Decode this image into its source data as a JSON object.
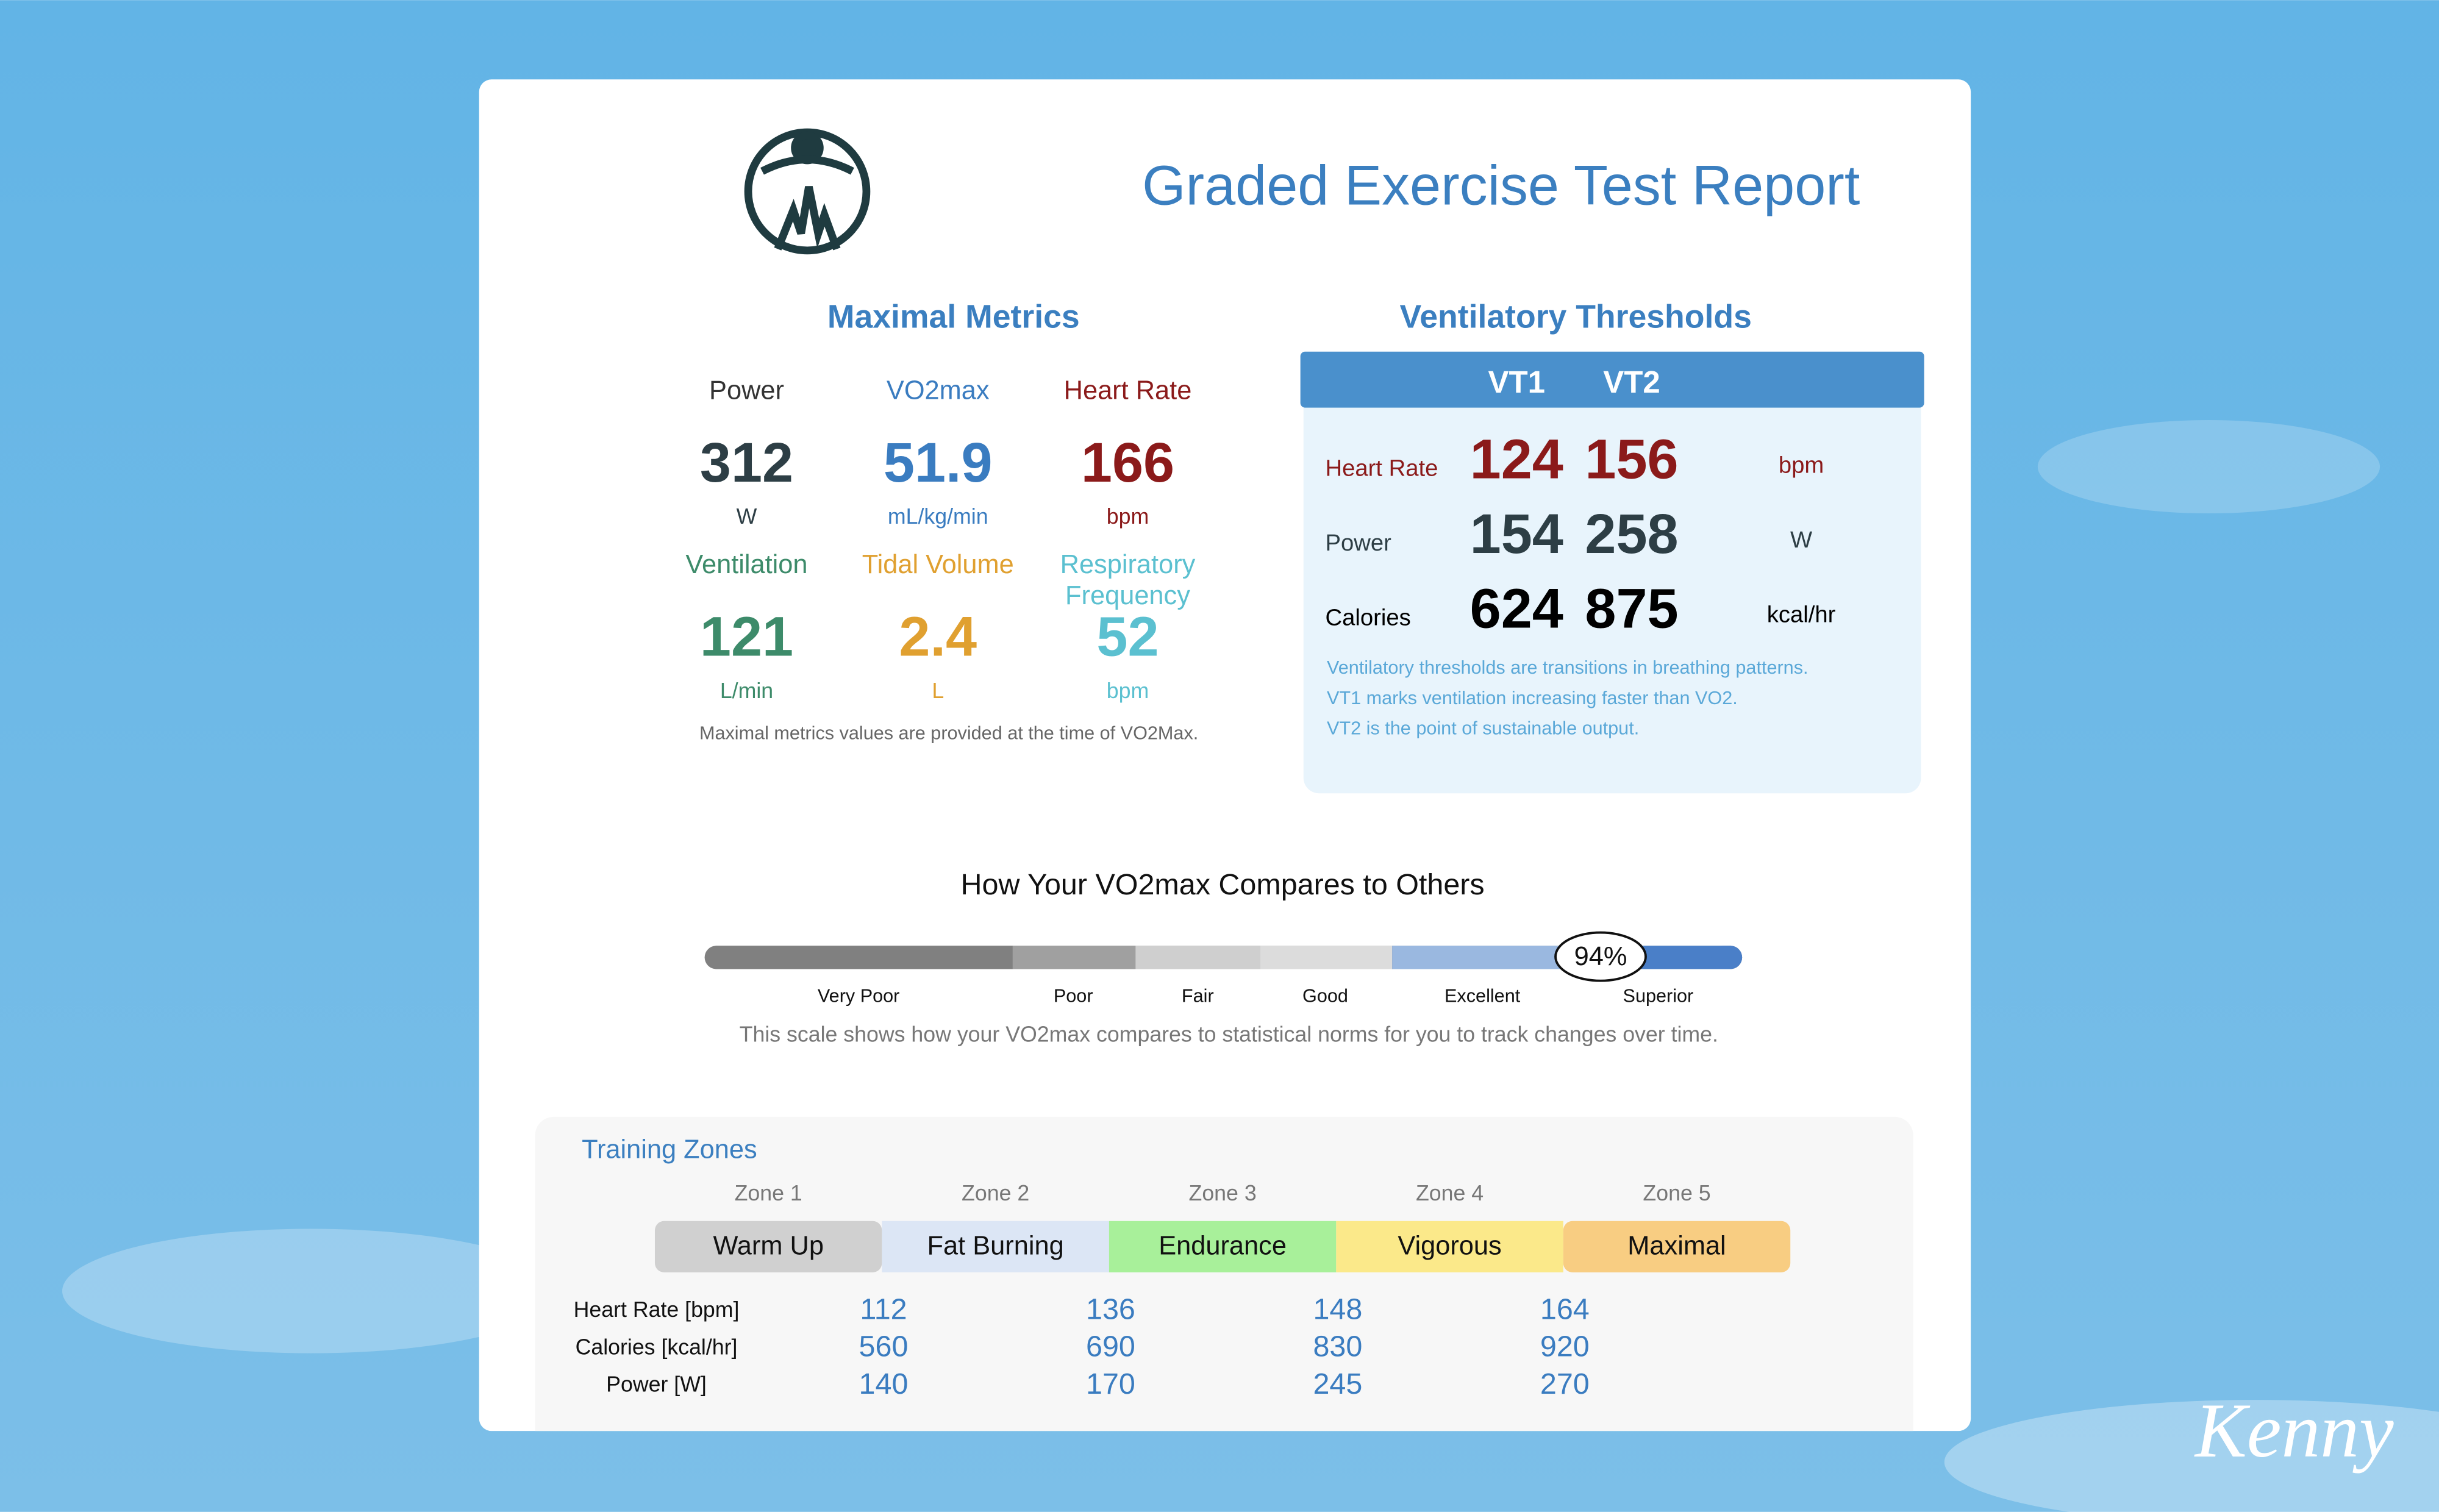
{
  "header": {
    "title": "Graded Exercise Test Report"
  },
  "maximal_metrics": {
    "title": "Maximal Metrics",
    "metrics": [
      {
        "label": "Power",
        "value": "312",
        "unit": "W",
        "color": "#2d3e45",
        "label_color": "#333333"
      },
      {
        "label": "VO2max",
        "value": "51.9",
        "unit": "mL/kg/min",
        "color": "#3a7cc0",
        "label_color": "#3a7cc0"
      },
      {
        "label": "Heart Rate",
        "value": "166",
        "unit": "bpm",
        "color": "#8b1a1a",
        "label_color": "#8b1a1a"
      },
      {
        "label": "Ventilation",
        "value": "121",
        "unit": "L/min",
        "color": "#3d8b6a",
        "label_color": "#3d8b6a"
      },
      {
        "label": "Tidal Volume",
        "value": "2.4",
        "unit": "L",
        "color": "#e0a030",
        "label_color": "#e0a030"
      },
      {
        "label": "Respiratory Frequency",
        "value": "52",
        "unit": "bpm",
        "color": "#5bc0d0",
        "label_color": "#5bc0d0"
      }
    ],
    "note": "Maximal metrics values are provided at the time of VO2Max."
  },
  "ventilatory_thresholds": {
    "title": "Ventilatory Thresholds",
    "columns": [
      "VT1",
      "VT2"
    ],
    "rows": [
      {
        "label": "Heart Rate",
        "values": [
          "124",
          "156"
        ],
        "unit": "bpm",
        "color": "#8b1a1a"
      },
      {
        "label": "Power",
        "values": [
          "154",
          "258"
        ],
        "unit": "W",
        "color": "#2d3e45"
      },
      {
        "label": "Calories",
        "values": [
          "624",
          "875"
        ],
        "unit": "kcal/hr",
        "color": "#000000"
      }
    ],
    "notes": [
      "Ventilatory thresholds are transitions in breathing patterns.",
      "VT1 marks ventilation increasing faster than VO2.",
      "VT2 is the point of sustainable output."
    ]
  },
  "comparison": {
    "title": "How Your VO2max Compares to Others",
    "categories": [
      "Very Poor",
      "Poor",
      "Fair",
      "Good",
      "Excellent",
      "Superior"
    ],
    "marker": "94%",
    "note": "This scale shows how your VO2max compares to statistical norms for you to track changes over time."
  },
  "training_zones": {
    "title": "Training Zones",
    "zones": [
      {
        "zone": "Zone 1",
        "name": "Warm Up",
        "color": "#d0d0d0"
      },
      {
        "zone": "Zone 2",
        "name": "Fat Burning",
        "color": "#dce6f5"
      },
      {
        "zone": "Zone 3",
        "name": "Endurance",
        "color": "#a8f09a"
      },
      {
        "zone": "Zone 4",
        "name": "Vigorous",
        "color": "#fbe98a"
      },
      {
        "zone": "Zone 5",
        "name": "Maximal",
        "color": "#f8cd82"
      }
    ],
    "rows": [
      {
        "label": "Heart Rate [bpm]",
        "values": [
          "112",
          "136",
          "148",
          "164"
        ]
      },
      {
        "label": "Calories [kcal/hr]",
        "values": [
          "560",
          "690",
          "830",
          "920"
        ]
      },
      {
        "label": "Power [W]",
        "values": [
          "140",
          "170",
          "245",
          "270"
        ]
      }
    ]
  },
  "signature": "Kenny"
}
